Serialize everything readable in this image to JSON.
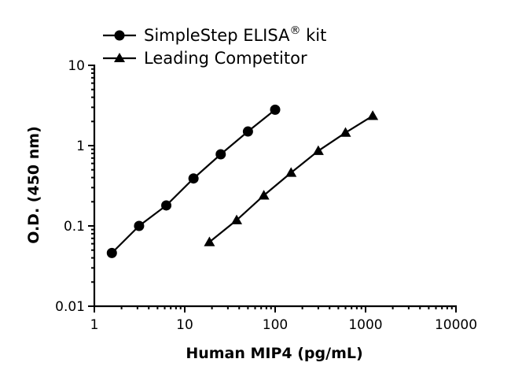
{
  "chart_data": {
    "type": "scatter",
    "xlabel": "Human MIP4 (pg/mL)",
    "ylabel": "O.D. (450 nm)",
    "xscale": "log",
    "yscale": "log",
    "xlim": [
      1,
      10000
    ],
    "ylim": [
      0.01,
      10
    ],
    "x_ticks": [
      1,
      10,
      100,
      1000,
      10000
    ],
    "x_tick_labels": [
      "1",
      "10",
      "100",
      "1000",
      "10000"
    ],
    "y_ticks": [
      0.01,
      0.1,
      1,
      10
    ],
    "y_tick_labels": [
      "0.01",
      "0.1",
      "1",
      "10"
    ],
    "grid": false,
    "legend_position": "top-left",
    "series": [
      {
        "name": "SimpleStep ELISA",
        "name_superscript": "®",
        "name_suffix": " kit",
        "marker": "circle",
        "color": "#000000",
        "x": [
          1.5625,
          3.125,
          6.25,
          12.5,
          25,
          50,
          100
        ],
        "y": [
          0.046,
          0.1,
          0.18,
          0.39,
          0.78,
          1.5,
          2.8
        ]
      },
      {
        "name": "Leading Competitor",
        "marker": "triangle",
        "color": "#000000",
        "x": [
          18.75,
          37.5,
          75,
          150,
          300,
          600,
          1200
        ],
        "y": [
          0.063,
          0.118,
          0.24,
          0.46,
          0.86,
          1.45,
          2.35
        ]
      }
    ]
  }
}
